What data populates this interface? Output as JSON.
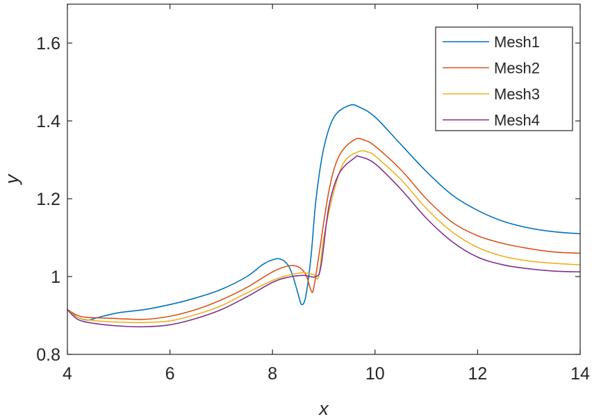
{
  "chart_data": {
    "type": "line",
    "title": "",
    "xlabel": "x",
    "ylabel": "y",
    "xlim": [
      4,
      14
    ],
    "ylim": [
      0.8,
      1.7
    ],
    "xticks": [
      4,
      6,
      8,
      10,
      12,
      14
    ],
    "yticks": [
      0.8,
      1.0,
      1.2,
      1.4,
      1.6
    ],
    "xtick_labels": [
      "4",
      "6",
      "8",
      "10",
      "12",
      "14"
    ],
    "ytick_labels": [
      "0.8",
      "1",
      "1.2",
      "1.4",
      "1.6"
    ],
    "grid": false,
    "legend_position": "top-right",
    "series": [
      {
        "name": "Mesh1",
        "color": "#0072BD",
        "points": [
          [
            4.0,
            0.915
          ],
          [
            4.1,
            0.905
          ],
          [
            4.2,
            0.895
          ],
          [
            4.4,
            0.888
          ],
          [
            4.6,
            0.895
          ],
          [
            5.0,
            0.907
          ],
          [
            5.5,
            0.915
          ],
          [
            6.0,
            0.928
          ],
          [
            6.5,
            0.945
          ],
          [
            7.0,
            0.967
          ],
          [
            7.5,
            1.0
          ],
          [
            7.8,
            1.03
          ],
          [
            8.0,
            1.043
          ],
          [
            8.15,
            1.045
          ],
          [
            8.3,
            1.03
          ],
          [
            8.4,
            1.0
          ],
          [
            8.5,
            0.955
          ],
          [
            8.57,
            0.928
          ],
          [
            8.65,
            0.95
          ],
          [
            8.75,
            1.05
          ],
          [
            8.85,
            1.2
          ],
          [
            9.0,
            1.33
          ],
          [
            9.2,
            1.41
          ],
          [
            9.5,
            1.44
          ],
          [
            9.7,
            1.435
          ],
          [
            10.0,
            1.41
          ],
          [
            10.5,
            1.34
          ],
          [
            11.0,
            1.27
          ],
          [
            11.5,
            1.21
          ],
          [
            12.0,
            1.17
          ],
          [
            12.5,
            1.142
          ],
          [
            13.0,
            1.125
          ],
          [
            13.5,
            1.115
          ],
          [
            14.0,
            1.11
          ]
        ]
      },
      {
        "name": "Mesh2",
        "color": "#D95319",
        "points": [
          [
            4.0,
            0.915
          ],
          [
            4.2,
            0.9
          ],
          [
            4.4,
            0.895
          ],
          [
            4.8,
            0.893
          ],
          [
            5.5,
            0.89
          ],
          [
            6.0,
            0.898
          ],
          [
            6.5,
            0.915
          ],
          [
            7.0,
            0.94
          ],
          [
            7.5,
            0.972
          ],
          [
            8.0,
            1.012
          ],
          [
            8.3,
            1.027
          ],
          [
            8.5,
            1.025
          ],
          [
            8.65,
            1.005
          ],
          [
            8.75,
            0.965
          ],
          [
            8.8,
            0.968
          ],
          [
            8.9,
            1.05
          ],
          [
            9.1,
            1.22
          ],
          [
            9.3,
            1.31
          ],
          [
            9.6,
            1.352
          ],
          [
            9.8,
            1.35
          ],
          [
            10.0,
            1.335
          ],
          [
            10.5,
            1.275
          ],
          [
            11.0,
            1.2
          ],
          [
            11.5,
            1.14
          ],
          [
            12.0,
            1.105
          ],
          [
            12.5,
            1.085
          ],
          [
            13.0,
            1.072
          ],
          [
            13.5,
            1.063
          ],
          [
            14.0,
            1.06
          ]
        ]
      },
      {
        "name": "Mesh3",
        "color": "#EDB120",
        "points": [
          [
            4.0,
            0.915
          ],
          [
            4.2,
            0.895
          ],
          [
            4.5,
            0.887
          ],
          [
            5.0,
            0.883
          ],
          [
            5.5,
            0.882
          ],
          [
            6.0,
            0.886
          ],
          [
            6.5,
            0.902
          ],
          [
            7.0,
            0.925
          ],
          [
            7.5,
            0.958
          ],
          [
            8.0,
            0.99
          ],
          [
            8.3,
            1.003
          ],
          [
            8.6,
            1.01
          ],
          [
            8.8,
            1.005
          ],
          [
            8.9,
            1.0
          ],
          [
            9.0,
            1.1
          ],
          [
            9.2,
            1.22
          ],
          [
            9.4,
            1.295
          ],
          [
            9.7,
            1.322
          ],
          [
            9.9,
            1.318
          ],
          [
            10.0,
            1.31
          ],
          [
            10.5,
            1.25
          ],
          [
            11.0,
            1.175
          ],
          [
            11.5,
            1.115
          ],
          [
            12.0,
            1.075
          ],
          [
            12.5,
            1.052
          ],
          [
            13.0,
            1.04
          ],
          [
            13.5,
            1.034
          ],
          [
            14.0,
            1.03
          ]
        ]
      },
      {
        "name": "Mesh4",
        "color": "#7E2F8E",
        "points": [
          [
            4.0,
            0.915
          ],
          [
            4.2,
            0.89
          ],
          [
            4.5,
            0.88
          ],
          [
            5.0,
            0.873
          ],
          [
            5.5,
            0.871
          ],
          [
            6.0,
            0.876
          ],
          [
            6.5,
            0.892
          ],
          [
            7.0,
            0.915
          ],
          [
            7.5,
            0.948
          ],
          [
            8.0,
            0.985
          ],
          [
            8.3,
            0.998
          ],
          [
            8.6,
            1.003
          ],
          [
            8.85,
            1.0
          ],
          [
            8.95,
            1.03
          ],
          [
            9.1,
            1.18
          ],
          [
            9.3,
            1.265
          ],
          [
            9.6,
            1.305
          ],
          [
            9.7,
            1.308
          ],
          [
            10.0,
            1.29
          ],
          [
            10.5,
            1.225
          ],
          [
            11.0,
            1.15
          ],
          [
            11.5,
            1.09
          ],
          [
            12.0,
            1.05
          ],
          [
            12.5,
            1.03
          ],
          [
            13.0,
            1.02
          ],
          [
            13.5,
            1.014
          ],
          [
            14.0,
            1.012
          ]
        ]
      }
    ]
  }
}
